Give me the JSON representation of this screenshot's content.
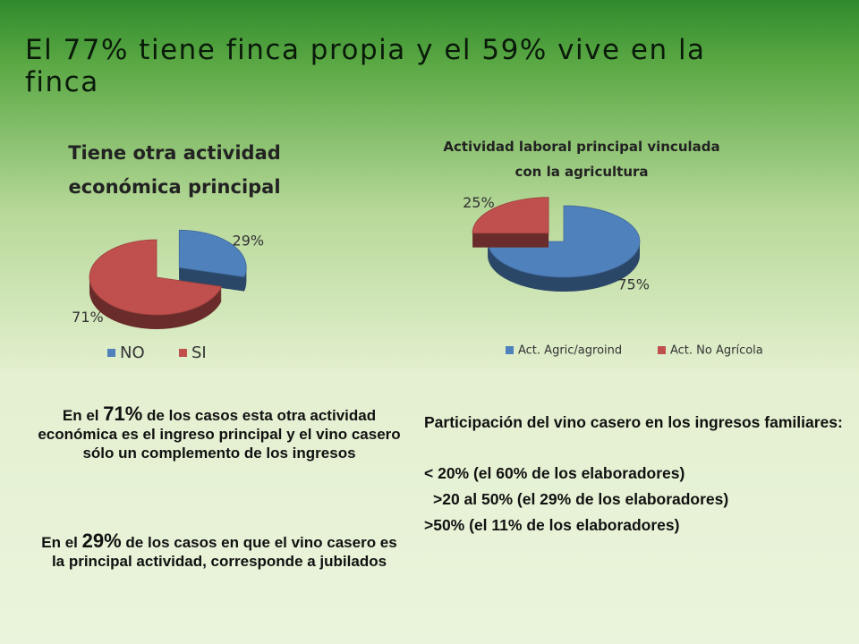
{
  "title": "El 77% tiene finca propia y el 59% vive en la finca",
  "chart_data": [
    {
      "type": "pie",
      "title": "Tiene otra actividad económica principal",
      "categories": [
        "NO",
        "SI"
      ],
      "values": [
        29,
        71
      ],
      "value_labels": [
        "29%",
        "71%"
      ],
      "colors": [
        "#4f81bd",
        "#c0504d"
      ],
      "legend": "bottom"
    },
    {
      "type": "pie",
      "title": "Actividad laboral principal vinculada con la agricultura",
      "categories": [
        "Act. Agric/agroind",
        "Act. No Agrícola"
      ],
      "values": [
        75,
        25
      ],
      "value_labels": [
        "75%",
        "25%"
      ],
      "colors": [
        "#4f81bd",
        "#c0504d"
      ],
      "legend": "bottom"
    }
  ],
  "left_text": [
    [
      "En el ",
      "71%",
      " de los casos esta  otra actividad económica es el ingreso principal y el vino casero sólo un complemento de los ingresos"
    ],
    [
      "En el ",
      "29%",
      " de los casos  en que el vino casero es la principal actividad, corresponde a jubilados"
    ]
  ],
  "right_text": {
    "heading": "Participación del vino casero en los ingresos familiares:",
    "lines": [
      "< 20% (el 60% de los elaboradores)",
      ">20 al 50% (el 29% de los elaboradores)",
      ">50%  (el 11% de los elaboradores)"
    ]
  }
}
